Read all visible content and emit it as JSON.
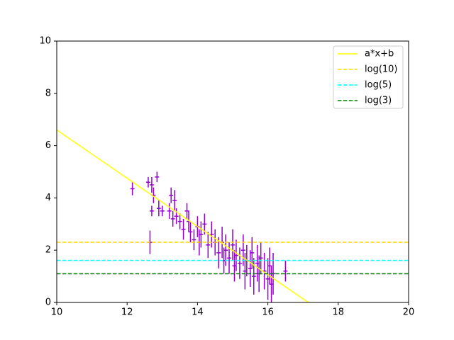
{
  "chart_data": {
    "type": "errorbar",
    "xlim": [
      10,
      20
    ],
    "ylim": [
      0,
      10
    ],
    "xticks": [
      10,
      12,
      14,
      16,
      18,
      20
    ],
    "yticks": [
      0,
      2,
      4,
      6,
      8,
      10
    ],
    "legend": "upper right",
    "errorbars": {
      "color": "#9400d3",
      "xerr": 0.06,
      "x": [
        12.15,
        12.6,
        12.65,
        12.7,
        12.7,
        12.75,
        12.85,
        12.9,
        13.0,
        13.2,
        13.25,
        13.3,
        13.35,
        13.4,
        13.5,
        13.6,
        13.7,
        13.75,
        13.8,
        13.9,
        14.0,
        14.05,
        14.1,
        14.2,
        14.3,
        14.4,
        14.5,
        14.6,
        14.7,
        14.75,
        14.8,
        14.9,
        15.0,
        15.05,
        15.1,
        15.2,
        15.3,
        15.35,
        15.4,
        15.5,
        15.55,
        15.6,
        15.7,
        15.75,
        15.8,
        15.9,
        16.0,
        16.05,
        16.1,
        16.15,
        16.5
      ],
      "values": [
        4.35,
        4.6,
        2.3,
        4.5,
        3.5,
        4.1,
        4.8,
        3.6,
        3.5,
        3.5,
        4.1,
        3.2,
        3.9,
        3.3,
        3.1,
        2.8,
        3.5,
        3.1,
        2.7,
        2.4,
        2.9,
        2.3,
        2.6,
        3.0,
        2.2,
        2.6,
        2.3,
        1.9,
        2.3,
        1.6,
        2.0,
        1.7,
        2.2,
        1.4,
        1.8,
        1.5,
        2.0,
        1.2,
        1.6,
        1.3,
        1.9,
        1.0,
        1.5,
        1.1,
        1.7,
        1.2,
        0.9,
        1.4,
        0.7,
        1.1,
        1.2
      ],
      "errors": [
        0.25,
        0.2,
        0.45,
        0.3,
        0.2,
        0.3,
        0.2,
        0.3,
        0.2,
        0.3,
        0.3,
        0.3,
        0.4,
        0.3,
        0.3,
        0.4,
        0.3,
        0.4,
        0.4,
        0.4,
        0.4,
        0.5,
        0.5,
        0.4,
        0.5,
        0.5,
        0.5,
        0.6,
        0.6,
        0.5,
        0.6,
        0.6,
        0.6,
        0.6,
        0.6,
        0.6,
        0.6,
        0.7,
        0.6,
        0.7,
        0.6,
        0.7,
        0.7,
        0.7,
        0.6,
        0.7,
        0.8,
        0.7,
        0.7,
        0.8,
        0.4
      ]
    },
    "lines": [
      {
        "name": "a*x+b",
        "color": "#ffff00",
        "style": "solid",
        "x": [
          10,
          17.15
        ],
        "values": [
          6.6,
          0
        ]
      },
      {
        "name": "log(10)",
        "color": "#ffd700",
        "style": "dashed",
        "x": [
          10,
          20
        ],
        "values": [
          2.303,
          2.303
        ]
      },
      {
        "name": "log(5)",
        "color": "#00ffff",
        "style": "dashed",
        "x": [
          10,
          20
        ],
        "values": [
          1.609,
          1.609
        ]
      },
      {
        "name": "log(3)",
        "color": "#008000",
        "style": "dashed",
        "x": [
          10,
          20
        ],
        "values": [
          1.099,
          1.099
        ]
      }
    ]
  }
}
